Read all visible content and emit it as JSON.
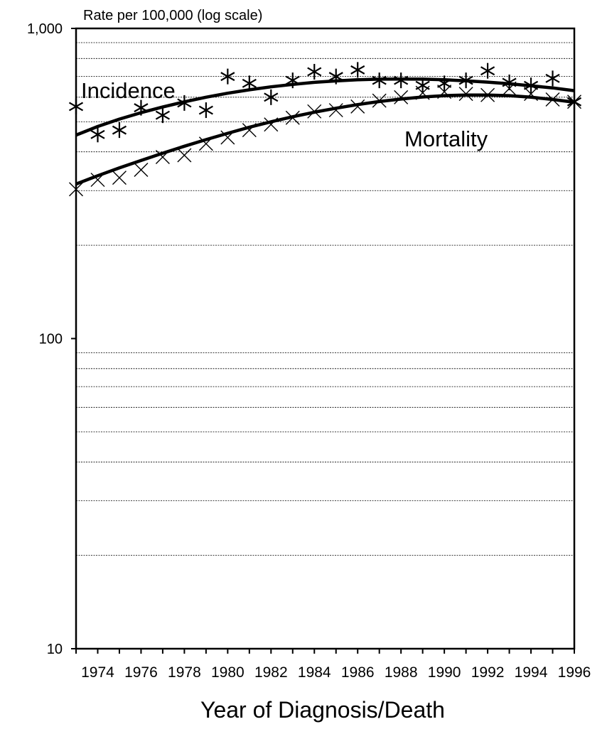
{
  "chart_data": {
    "type": "line",
    "title": "",
    "ylabel": "Rate per 100,000 (log scale)",
    "xlabel": "Year of Diagnosis/Death",
    "yscale": "log",
    "ylim": [
      10,
      1000
    ],
    "xlim": [
      1973,
      1996
    ],
    "grid": "horizontal dashed lines at 20, 30, 40, 50, 60, 70, 80, 90, 200, 300, 400, 500, 600, 700, 800, 900",
    "y_ticks": [
      {
        "value": 10,
        "label": "10"
      },
      {
        "value": 100,
        "label": "100"
      },
      {
        "value": 1000,
        "label": "1,000"
      }
    ],
    "y_gridlines": [
      20,
      30,
      40,
      50,
      60,
      70,
      80,
      90,
      200,
      300,
      400,
      500,
      600,
      700,
      800,
      900
    ],
    "x": [
      1973,
      1974,
      1975,
      1976,
      1977,
      1978,
      1979,
      1980,
      1981,
      1982,
      1983,
      1984,
      1985,
      1986,
      1987,
      1988,
      1989,
      1990,
      1991,
      1992,
      1993,
      1994,
      1995,
      1996
    ],
    "x_tick_labels": [
      "1974",
      "1976",
      "1978",
      "1980",
      "1982",
      "1984",
      "1986",
      "1988",
      "1990",
      "1992",
      "1994",
      "1996"
    ],
    "series": [
      {
        "name": "Incidence",
        "marker": "asterisk",
        "observed": [
          560,
          455,
          470,
          555,
          525,
          575,
          545,
          700,
          665,
          600,
          680,
          725,
          700,
          735,
          680,
          680,
          655,
          665,
          680,
          730,
          670,
          655,
          690,
          580
        ],
        "fitted": [
          453,
          483,
          510,
          535,
          558,
          580,
          600,
          618,
          634,
          648,
          660,
          670,
          677,
          683,
          686,
          687,
          686,
          683,
          678,
          671,
          663,
          653,
          643,
          630
        ]
      },
      {
        "name": "Mortality",
        "marker": "x",
        "observed": [
          303,
          325,
          330,
          350,
          385,
          390,
          425,
          445,
          470,
          490,
          515,
          540,
          545,
          560,
          585,
          600,
          620,
          625,
          615,
          610,
          640,
          615,
          590,
          580
        ],
        "fitted": [
          315,
          335,
          355,
          375,
          396,
          417,
          438,
          459,
          480,
          500,
          519,
          537,
          553,
          568,
          581,
          592,
          601,
          607,
          610,
          610,
          607,
          600,
          590,
          578
        ]
      }
    ]
  }
}
